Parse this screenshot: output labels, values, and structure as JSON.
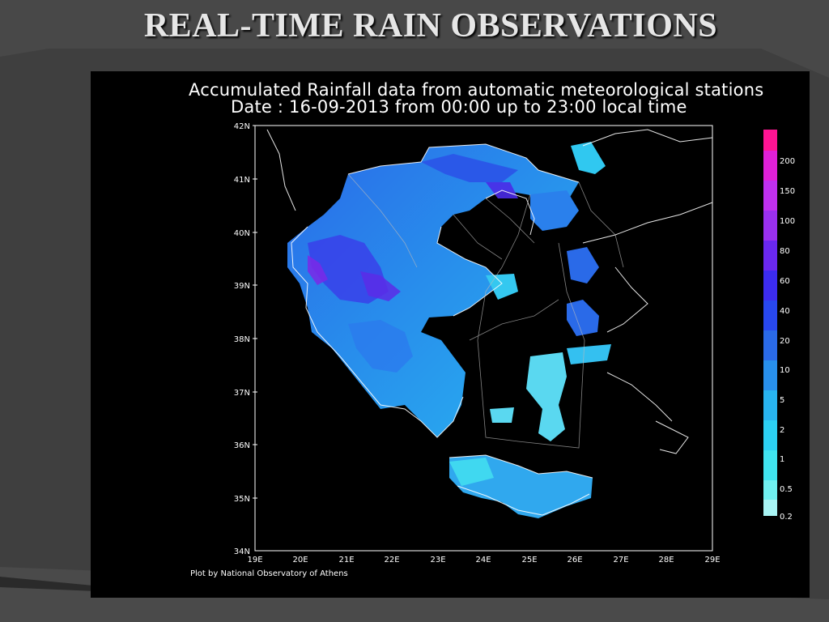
{
  "slide": {
    "title": "REAL-TIME RAIN  OBSERVATIONS"
  },
  "plot": {
    "title_line1": "Accumulated Rainfall data from automatic meteorological stations",
    "title_line2": "Date : 16-09-2013 from 00:00 up to 23:00 local time",
    "credit": "Plot by National Observatory of Athens"
  },
  "map": {
    "lat_labels": [
      "42N",
      "41N",
      "40N",
      "39N",
      "38N",
      "37N",
      "36N",
      "35N",
      "34N"
    ],
    "lon_labels": [
      "19E",
      "20E",
      "21E",
      "22E",
      "23E",
      "24E",
      "25E",
      "26E",
      "27E",
      "28E",
      "29E"
    ],
    "lat_range": [
      34,
      42
    ],
    "lon_range": [
      19,
      29
    ]
  },
  "legend": {
    "labels": [
      "200",
      "150",
      "100",
      "80",
      "60",
      "40",
      "20",
      "10",
      "5",
      "2",
      "1",
      "0.5",
      "0.2"
    ],
    "colors": [
      "#ff1493",
      "#e020d8",
      "#c030f0",
      "#9a30f0",
      "#6a28f0",
      "#3c2cf0",
      "#2848f0",
      "#2a6ae8",
      "#2890ec",
      "#28b4f0",
      "#2cd0f2",
      "#40e4f0",
      "#70f0f0",
      "#a8f4f4"
    ]
  },
  "colors": {
    "background": "#3f3f3f",
    "panel": "#000000",
    "title": "#e6e6e6"
  }
}
